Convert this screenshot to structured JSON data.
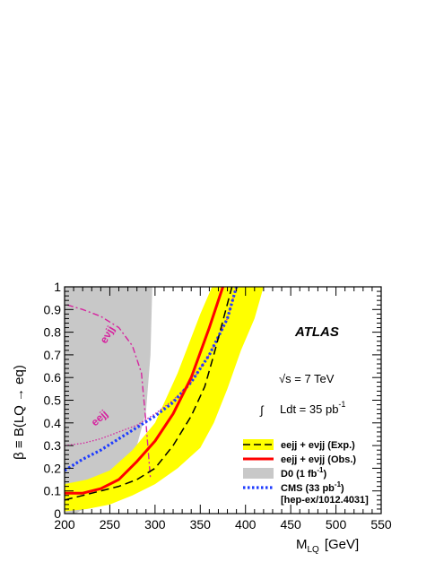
{
  "chart_data": {
    "type": "line",
    "xlabel_main": "M",
    "xlabel_sub": "LQ",
    "xlabel_unit": "[GeV]",
    "ylabel": "β ≡ B(LQ → eq)",
    "xlim": [
      200,
      550
    ],
    "ylim": [
      0,
      1
    ],
    "x_ticks": [
      "200",
      "250",
      "300",
      "350",
      "400",
      "450",
      "500",
      "550"
    ],
    "y_ticks": [
      "0",
      "0.1",
      "0.2",
      "0.3",
      "0.4",
      "0.5",
      "0.6",
      "0.7",
      "0.8",
      "0.9",
      "1"
    ],
    "annotations": {
      "experiment": "ATLAS",
      "energy": "√s = 7 TeV",
      "lumi": "Ldt = 35 pb",
      "lumi_exp": "-1",
      "curve_label_enujj": "eνjj",
      "curve_label_eejj": "eejj"
    },
    "legend": [
      {
        "label": "eejj + eνjj (Exp.)",
        "style": "dashed-yellow",
        "color": "#000000"
      },
      {
        "label": "eejj + eνjj (Obs.)",
        "style": "solid",
        "color": "#ff0000"
      },
      {
        "label": "D0 (1 fb",
        "sup": "-1",
        "tail": ")",
        "style": "fill",
        "color": "#c8c8c8"
      },
      {
        "label": "CMS (33 pb",
        "sup": "-1",
        "tail": ")",
        "style": "dotted",
        "color": "#1e3cff"
      },
      {
        "label": "[hep-ex/1012.4031]",
        "style": "none"
      }
    ],
    "colors": {
      "band": "#ffff00",
      "observed": "#ff0000",
      "expected": "#000000",
      "d0": "#c8c8c8",
      "cms": "#1e3cff",
      "eejj": "#d6249f",
      "enujj": "#d6249f"
    },
    "series": [
      {
        "name": "eejj + eνjj (Obs.)",
        "x": [
          200,
          220,
          240,
          260,
          280,
          300,
          320,
          340,
          360,
          375
        ],
        "y": [
          0.09,
          0.09,
          0.11,
          0.15,
          0.23,
          0.32,
          0.44,
          0.6,
          0.82,
          1.0
        ]
      },
      {
        "name": "eejj + eνjj (Exp.)",
        "x": [
          200,
          220,
          240,
          260,
          280,
          300,
          320,
          340,
          355,
          365,
          375,
          385
        ],
        "y": [
          0.06,
          0.08,
          0.1,
          0.12,
          0.15,
          0.2,
          0.3,
          0.43,
          0.56,
          0.7,
          0.85,
          1.0
        ]
      },
      {
        "name": "CMS (33 pb-1)",
        "x": [
          200,
          220,
          240,
          260,
          280,
          300,
          320,
          340,
          360,
          380,
          390
        ],
        "y": [
          0.19,
          0.24,
          0.28,
          0.33,
          0.38,
          0.43,
          0.49,
          0.58,
          0.7,
          0.86,
          1.0
        ]
      },
      {
        "name": "eejj",
        "x": [
          200,
          220,
          240,
          260,
          280,
          300,
          320,
          340,
          360,
          380,
          390
        ],
        "y": [
          0.3,
          0.31,
          0.33,
          0.36,
          0.39,
          0.44,
          0.5,
          0.58,
          0.7,
          0.86,
          1.0
        ]
      },
      {
        "name": "eνjj",
        "x": [
          203,
          220,
          240,
          260,
          275,
          285,
          290,
          295
        ],
        "y": [
          0.92,
          0.9,
          0.87,
          0.82,
          0.74,
          0.62,
          0.4,
          0.15
        ]
      }
    ],
    "band_1sigma": {
      "x": [
        200,
        225,
        250,
        275,
        300,
        325,
        350,
        365,
        380,
        395,
        410,
        420
      ],
      "lower": [
        0.01,
        0.02,
        0.04,
        0.08,
        0.13,
        0.2,
        0.29,
        0.4,
        0.55,
        0.72,
        0.86,
        1.0
      ],
      "upper": [
        0.13,
        0.15,
        0.19,
        0.28,
        0.4,
        0.62,
        0.88,
        1.0,
        1.0,
        1.0,
        1.0,
        1.0
      ],
      "top_end": 363
    },
    "d0_excluded_edge": {
      "x": [
        212,
        230,
        250,
        265,
        280,
        290,
        295,
        297
      ],
      "y": [
        0.0,
        0.04,
        0.1,
        0.18,
        0.3,
        0.45,
        0.7,
        1.0
      ]
    }
  }
}
